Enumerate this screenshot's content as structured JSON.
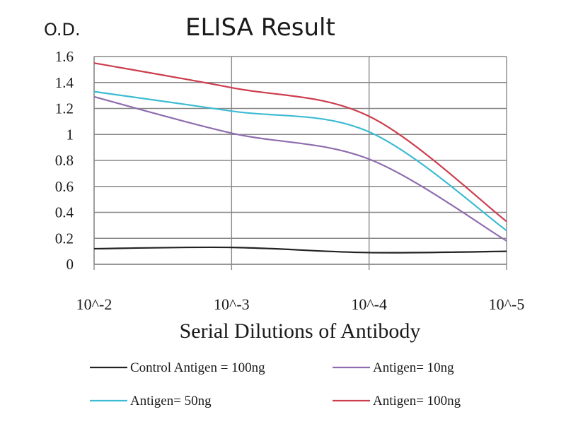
{
  "chart_data": {
    "type": "line",
    "title": "ELISA Result",
    "ylabel": "O.D.",
    "xlabel": "Serial Dilutions of Antibody",
    "categories": [
      "10^-2",
      "10^-3",
      "10^-4",
      "10^-5"
    ],
    "y_ticks": [
      "0",
      "0.2",
      "0.4",
      "0.6",
      "0.8",
      "1",
      "1.2",
      "1.4",
      "1.6"
    ],
    "ylim": [
      0,
      1.6
    ],
    "grid": true,
    "legend_position": "bottom",
    "series": [
      {
        "name": "Control Antigen = 100ng",
        "color": "#222222",
        "x": [
          "10^-2",
          "10^-3",
          "10^-4",
          "10^-5"
        ],
        "values": [
          0.12,
          0.13,
          0.09,
          0.1
        ]
      },
      {
        "name": "Antigen= 10ng",
        "color": "#8e6cae",
        "x": [
          "10^-2",
          "10^-3",
          "10^-4",
          "10^-5"
        ],
        "values": [
          1.29,
          1.01,
          0.81,
          0.18
        ]
      },
      {
        "name": "Antigen= 50ng",
        "color": "#3cbbd3",
        "x": [
          "10^-2",
          "10^-3",
          "10^-4",
          "10^-5"
        ],
        "values": [
          1.33,
          1.18,
          1.02,
          0.26
        ]
      },
      {
        "name": "Antigen= 100ng",
        "color": "#cc3e4e",
        "x": [
          "10^-2",
          "10^-3",
          "10^-4",
          "10^-5"
        ],
        "values": [
          1.55,
          1.36,
          1.14,
          0.33
        ]
      }
    ]
  }
}
